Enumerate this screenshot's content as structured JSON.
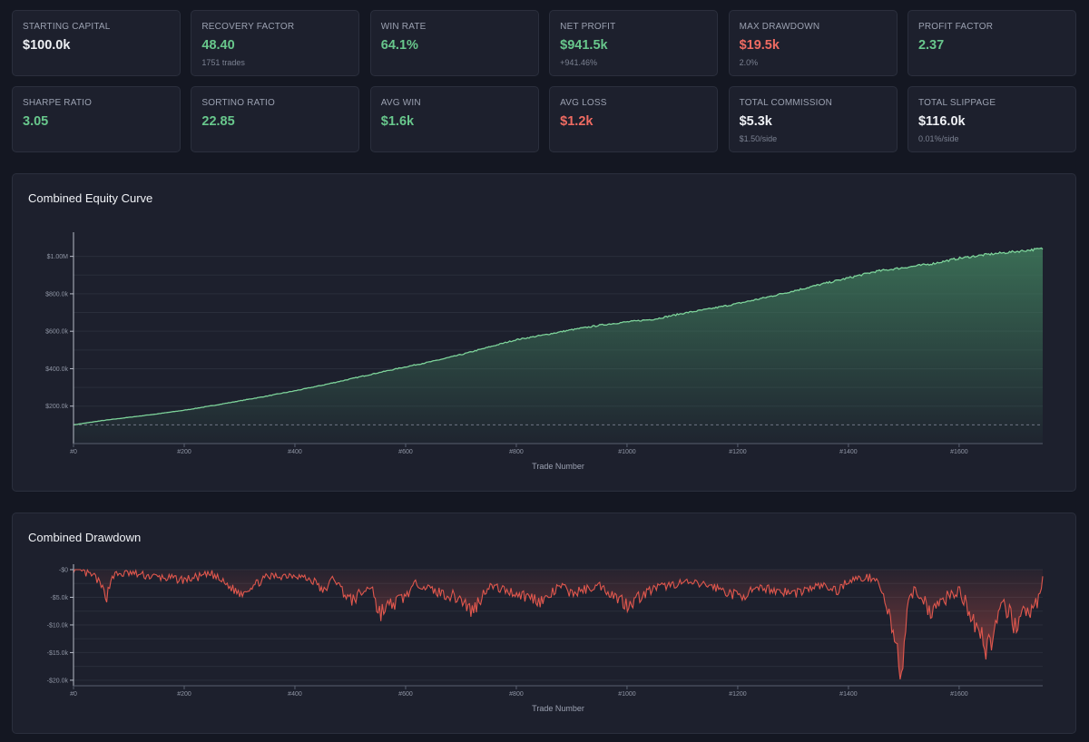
{
  "metrics_row1": [
    {
      "label": "STARTING CAPITAL",
      "value": "$100.0k",
      "sub": "",
      "color": "white"
    },
    {
      "label": "RECOVERY FACTOR",
      "value": "48.40",
      "sub": "1751 trades",
      "color": "green"
    },
    {
      "label": "WIN RATE",
      "value": "64.1%",
      "sub": "",
      "color": "green"
    },
    {
      "label": "NET PROFIT",
      "value": "$941.5k",
      "sub": "+941.46%",
      "color": "green"
    },
    {
      "label": "MAX DRAWDOWN",
      "value": "$19.5k",
      "sub": "2.0%",
      "color": "red"
    },
    {
      "label": "PROFIT FACTOR",
      "value": "2.37",
      "sub": "",
      "color": "green"
    }
  ],
  "metrics_row2": [
    {
      "label": "SHARPE RATIO",
      "value": "3.05",
      "sub": "",
      "color": "green"
    },
    {
      "label": "SORTINO RATIO",
      "value": "22.85",
      "sub": "",
      "color": "green"
    },
    {
      "label": "AVG WIN",
      "value": "$1.6k",
      "sub": "",
      "color": "green"
    },
    {
      "label": "AVG LOSS",
      "value": "$1.2k",
      "sub": "",
      "color": "red"
    },
    {
      "label": "TOTAL COMMISSION",
      "value": "$5.3k",
      "sub": "$1.50/side",
      "color": "white"
    },
    {
      "label": "TOTAL SLIPPAGE",
      "value": "$116.0k",
      "sub": "0.01%/side",
      "color": "white"
    }
  ],
  "colors": {
    "equity_line": "#7dd39a",
    "equity_fill": "#3f7a5c",
    "drawdown": "#e0574d",
    "grid": "#2a2e3b",
    "axis": "#b7bcc8"
  },
  "chart_data": [
    {
      "type": "area",
      "title": "Combined Equity Curve",
      "xlabel": "Trade Number",
      "ylabel": "",
      "xlim": [
        0,
        1751
      ],
      "ylim": [
        0,
        1100000
      ],
      "yticks": [
        200000,
        400000,
        600000,
        800000,
        1000000
      ],
      "ytick_labels": [
        "$200.0k",
        "$400.0k",
        "$600.0k",
        "$800.0k",
        "$1.00M"
      ],
      "xticks": [
        0,
        200,
        400,
        600,
        800,
        1000,
        1200,
        1400,
        1600
      ],
      "xtick_labels": [
        "#0",
        "#200",
        "#400",
        "#600",
        "#800",
        "#1000",
        "#1200",
        "#1400",
        "#1600"
      ],
      "baseline": 100000,
      "x": [
        0,
        50,
        100,
        150,
        200,
        250,
        300,
        350,
        400,
        450,
        500,
        550,
        600,
        650,
        700,
        750,
        800,
        850,
        900,
        950,
        1000,
        1050,
        1100,
        1150,
        1200,
        1250,
        1300,
        1350,
        1400,
        1450,
        1500,
        1550,
        1600,
        1650,
        1700,
        1751
      ],
      "values": [
        100000,
        122000,
        140000,
        158000,
        178000,
        202000,
        228000,
        254000,
        282000,
        312000,
        345000,
        378000,
        410000,
        440000,
        475000,
        515000,
        555000,
        580000,
        608000,
        632000,
        650000,
        665000,
        695000,
        720000,
        748000,
        780000,
        815000,
        850000,
        885000,
        920000,
        940000,
        960000,
        990000,
        1010000,
        1025000,
        1041500
      ]
    },
    {
      "type": "area",
      "title": "Combined Drawdown",
      "xlabel": "Trade Number",
      "ylabel": "",
      "xlim": [
        0,
        1751
      ],
      "ylim": [
        -21000,
        0
      ],
      "yticks": [
        0,
        -5000,
        -10000,
        -15000,
        -20000
      ],
      "ytick_labels": [
        "-$0",
        "-$5.0k",
        "-$10.0k",
        "-$15.0k",
        "-$20.0k"
      ],
      "xticks": [
        0,
        200,
        400,
        600,
        800,
        1000,
        1200,
        1400,
        1600
      ],
      "xtick_labels": [
        "#0",
        "#200",
        "#400",
        "#600",
        "#800",
        "#1000",
        "#1200",
        "#1400",
        "#1600"
      ],
      "x": [
        0,
        40,
        60,
        70,
        100,
        150,
        200,
        250,
        300,
        350,
        400,
        440,
        450,
        470,
        500,
        540,
        550,
        600,
        620,
        650,
        700,
        720,
        750,
        800,
        850,
        880,
        900,
        950,
        1000,
        1050,
        1100,
        1150,
        1200,
        1250,
        1300,
        1350,
        1380,
        1400,
        1450,
        1470,
        1480,
        1490,
        1495,
        1500,
        1510,
        1520,
        1550,
        1580,
        1600,
        1640,
        1650,
        1680,
        1700,
        1720,
        1740,
        1751
      ],
      "values": [
        0,
        -1500,
        -5000,
        -1200,
        -800,
        -1500,
        -2000,
        -1000,
        -4500,
        -1500,
        -1000,
        -2500,
        -4500,
        -1500,
        -6000,
        -3000,
        -8300,
        -5000,
        -2500,
        -4000,
        -5500,
        -8000,
        -3000,
        -4500,
        -6000,
        -3000,
        -4500,
        -3000,
        -6500,
        -3500,
        -2500,
        -3000,
        -5000,
        -3500,
        -4500,
        -3000,
        -4000,
        -2000,
        -1500,
        -7000,
        -13000,
        -17500,
        -19500,
        -15000,
        -6000,
        -3500,
        -8000,
        -5000,
        -4000,
        -12000,
        -15000,
        -7000,
        -10000,
        -8500,
        -6500,
        -2000
      ]
    }
  ]
}
